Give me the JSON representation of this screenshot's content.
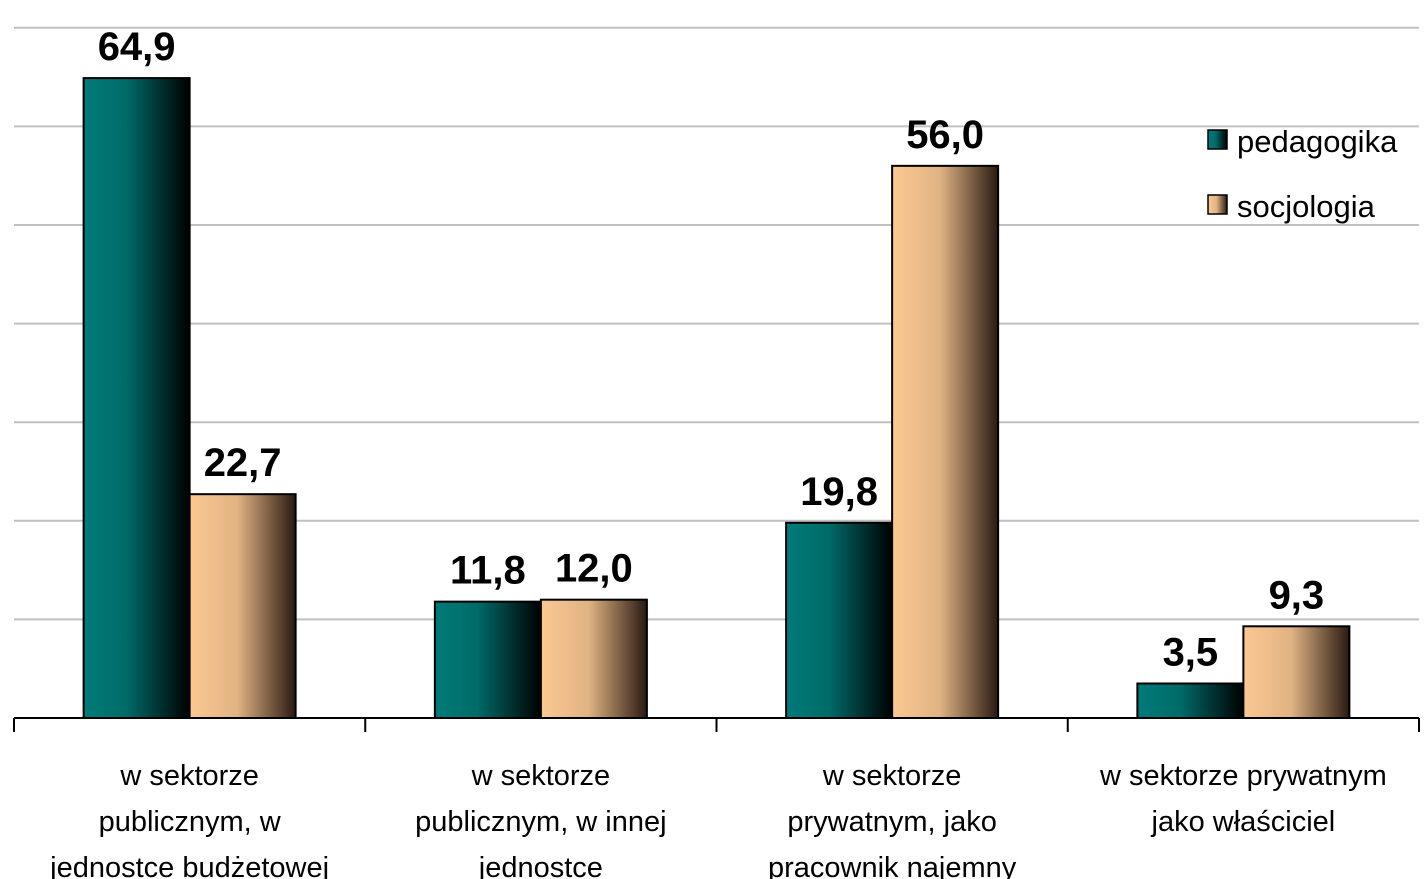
{
  "chart_data": {
    "type": "bar",
    "categories": [
      [
        "w sektorze",
        "publicznym, w",
        "jednostce budżetowej"
      ],
      [
        "w sektorze",
        "publicznym, w innej",
        "jednostce"
      ],
      [
        "w sektorze",
        "prywatnym, jako",
        "pracownik najemny"
      ],
      [
        "w sektorze prywatnym",
        "jako właściciel"
      ]
    ],
    "series": [
      {
        "name": "pedagogika",
        "values": [
          64.9,
          11.8,
          19.8,
          3.5
        ],
        "labels": [
          "64,9",
          "11,8",
          "19,8",
          "3,5"
        ]
      },
      {
        "name": "socjologia",
        "values": [
          22.7,
          12.0,
          56.0,
          9.3
        ],
        "labels": [
          "22,7",
          "12,0",
          "56,0",
          "9,3"
        ]
      }
    ],
    "ylim": [
      0,
      70
    ],
    "grid": true,
    "legend": "right",
    "colors": {
      "pedagogika": [
        "#007b78",
        "#000000"
      ],
      "socjologia": [
        "#fcc893",
        "#2a1a12"
      ],
      "grid": "#c0c0c0",
      "axis": "#000000"
    }
  }
}
